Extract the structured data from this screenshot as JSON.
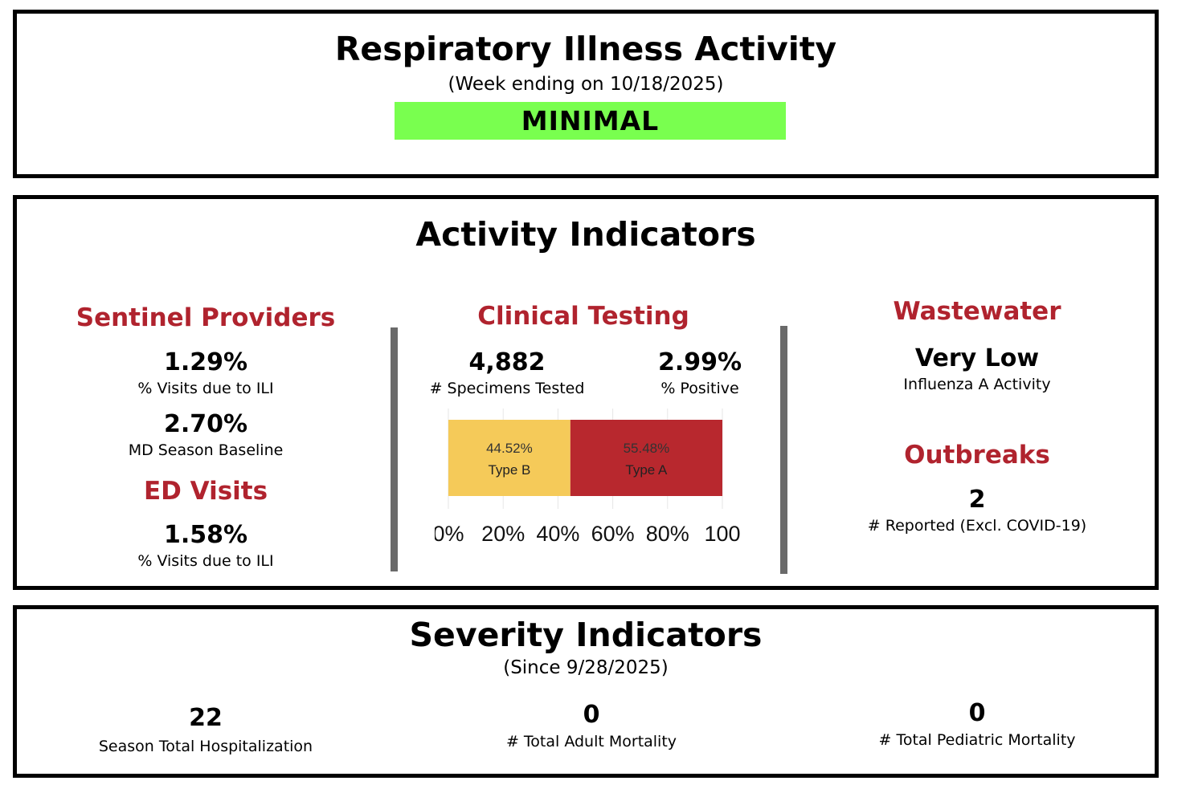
{
  "activity": {
    "title": "Respiratory Illness Activity",
    "week": "(Week ending on 10/18/2025)",
    "level": "MINIMAL",
    "level_color": "#79ff4f"
  },
  "indicators": {
    "title": "Activity Indicators",
    "sentinel": {
      "heading": "Sentinel Providers",
      "ili_value": "1.29%",
      "ili_label": "% Visits due to ILI",
      "baseline_value": "2.70%",
      "baseline_label": "MD Season Baseline"
    },
    "ed": {
      "heading": "ED Visits",
      "value": "1.58%",
      "label": "% Visits due to ILI"
    },
    "clinical": {
      "heading": "Clinical Testing",
      "specimens_value": "4,882",
      "specimens_label": "# Specimens Tested",
      "positive_value": "2.99%",
      "positive_label": "% Positive"
    },
    "wastewater": {
      "heading": "Wastewater",
      "value": "Very Low",
      "label": "Influenza A Activity"
    },
    "outbreaks": {
      "heading": "Outbreaks",
      "value": "2",
      "label": "# Reported (Excl. COVID-19)"
    }
  },
  "chart_data": {
    "type": "bar",
    "orientation": "horizontal-stacked",
    "series": [
      {
        "name": "Type B",
        "value": 44.52,
        "label": "44.52%",
        "color": "#f5ca59"
      },
      {
        "name": "Type A",
        "value": 55.48,
        "label": "55.48%",
        "color": "#b8282e"
      }
    ],
    "xlim": [
      0,
      100
    ],
    "tick_labels": [
      "0%",
      "20%",
      "40%",
      "60%",
      "80%",
      "100"
    ],
    "grid": true
  },
  "severity": {
    "title": "Severity Indicators",
    "since": "(Since 9/28/2025)",
    "items": [
      {
        "value": "22",
        "label": "Season Total Hospitalization"
      },
      {
        "value": "0",
        "label": "# Total Adult Mortality"
      },
      {
        "value": "0",
        "label": "# Total Pediatric Mortality"
      }
    ]
  }
}
